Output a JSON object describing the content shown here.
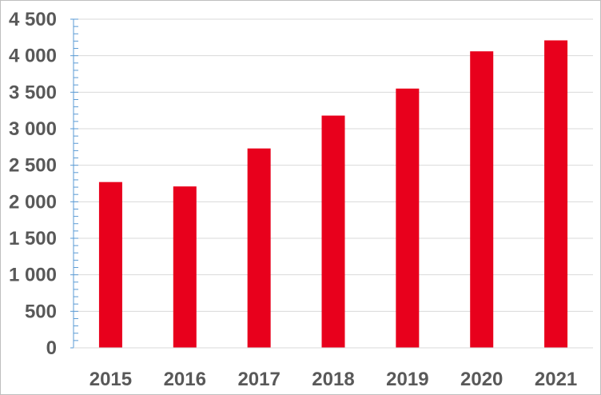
{
  "chart_data": {
    "type": "bar",
    "categories": [
      "2015",
      "2016",
      "2017",
      "2018",
      "2019",
      "2020",
      "2021"
    ],
    "values": [
      2270,
      2210,
      2730,
      3180,
      3550,
      4060,
      4210
    ],
    "ylim": [
      0,
      4500
    ],
    "yticks": [
      0,
      500,
      1000,
      1500,
      2000,
      2500,
      3000,
      3500,
      4000,
      4500
    ],
    "ytick_labels": [
      "0",
      "500",
      "1 000",
      "1 500",
      "2 000",
      "2 500",
      "3 000",
      "3 500",
      "4 000",
      "4 500"
    ],
    "grid": true,
    "legend": "none",
    "colors": {
      "bar": "#e8001c",
      "gridline": "#d9d9d9",
      "axis": "#5b9bd5",
      "text": "#595959"
    }
  }
}
